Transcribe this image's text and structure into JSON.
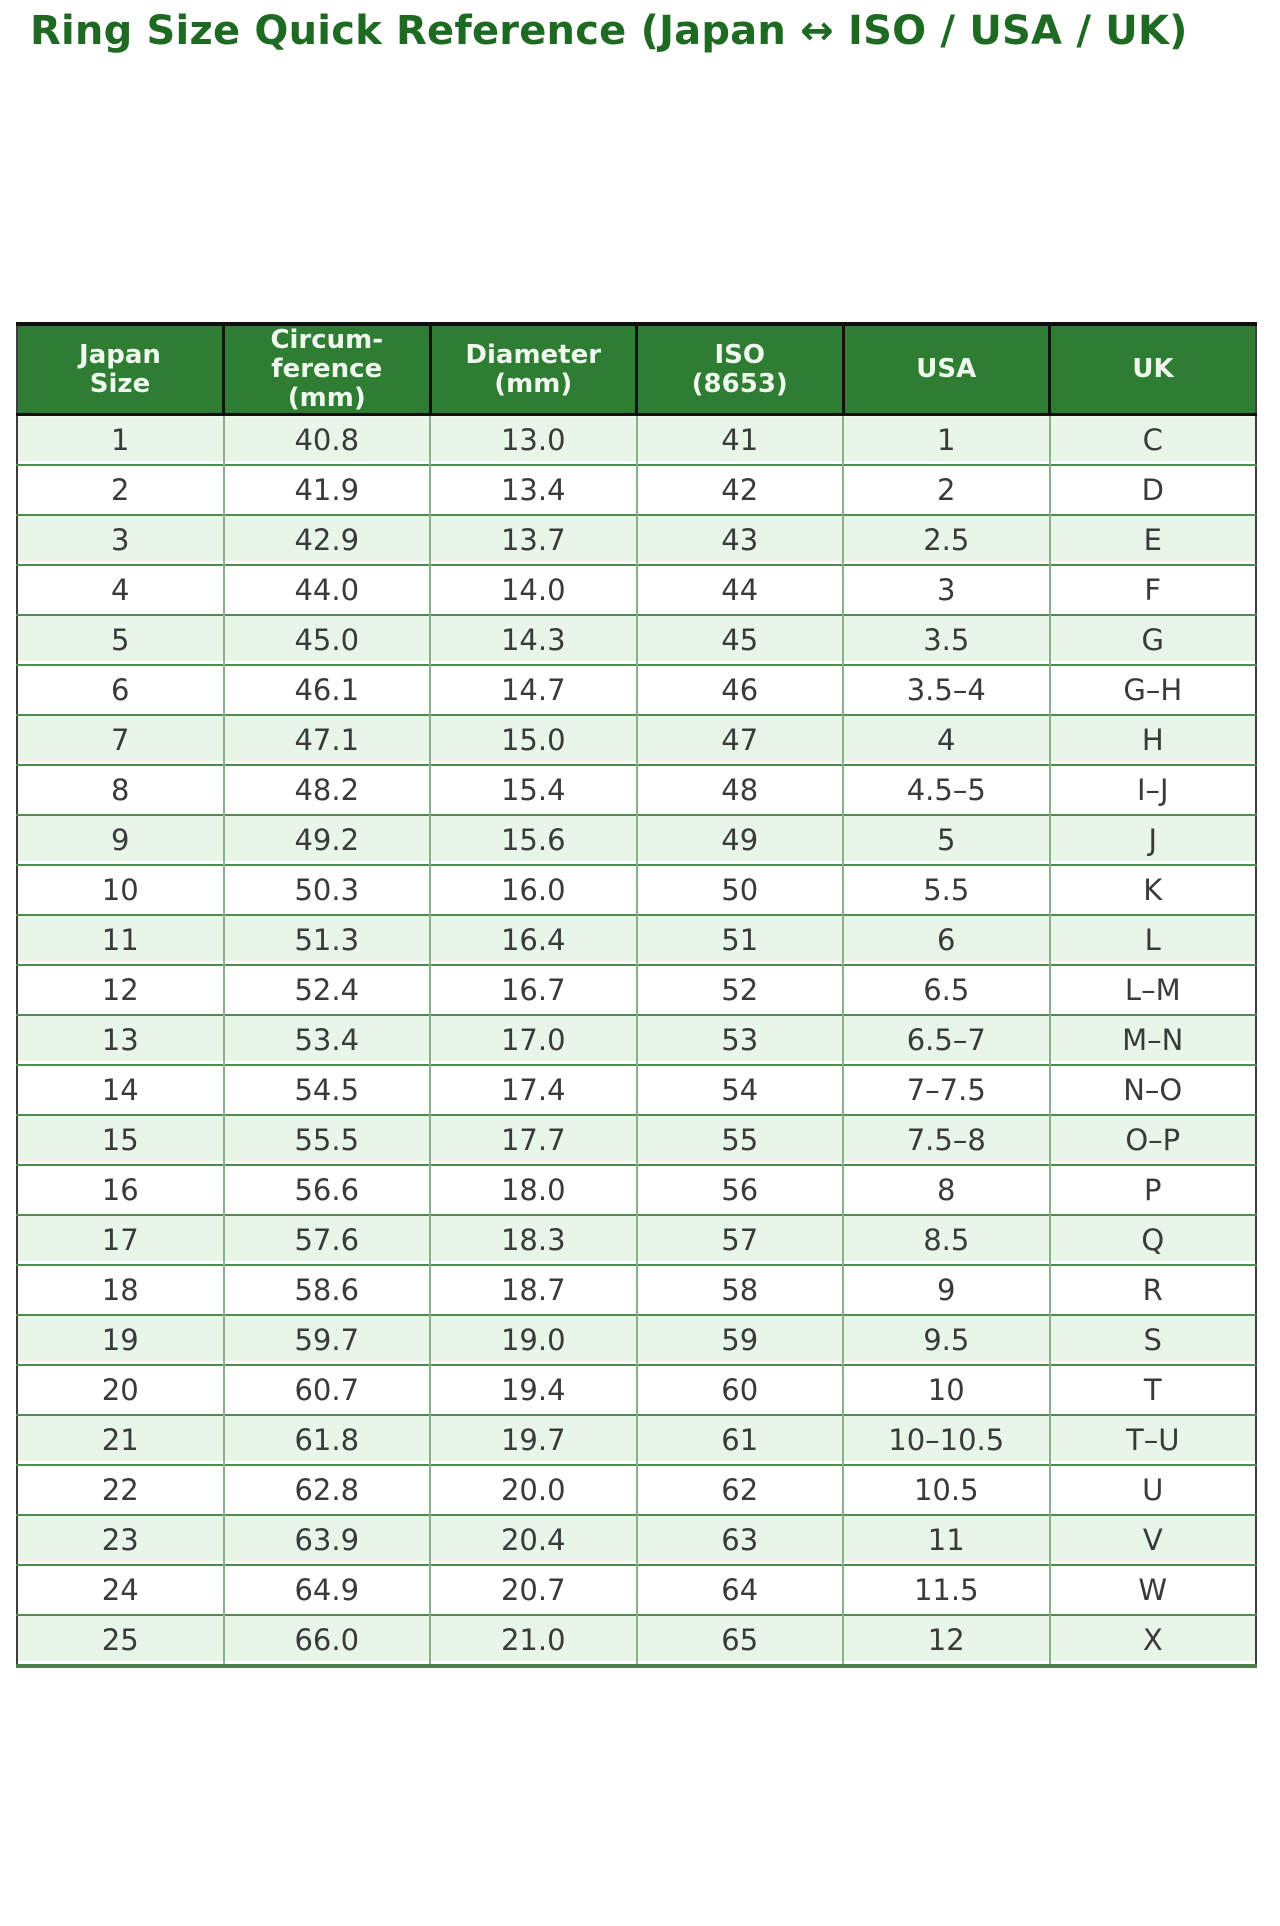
{
  "page": {
    "title": "Ring Size Quick Reference (Japan ↔ ISO / USA / UK)"
  },
  "colors": {
    "title_green": "#1f6a23",
    "header_bg": "#2e7d32",
    "header_text": "#eff7ef",
    "row_alt_green": "#e8f5e9",
    "row_white": "#ffffff",
    "row_divider_green": "#4e8d4e",
    "cell_divider_green": "#8ab28a",
    "outer_border_black": "#101010",
    "bottom_border_green": "#4c7f4c",
    "data_text": "#3a3a3a"
  },
  "table": {
    "headers": [
      "Japan\nSize",
      "Circum-\nference\n(mm)",
      "Diameter\n(mm)",
      "ISO\n(8653)",
      "USA",
      "UK"
    ],
    "header_keys": [
      "japan-size",
      "circumference-mm",
      "diameter-mm",
      "iso-8653",
      "usa",
      "uk"
    ],
    "rows": [
      [
        "1",
        "40.8",
        "13.0",
        "41",
        "1",
        "C"
      ],
      [
        "2",
        "41.9",
        "13.4",
        "42",
        "2",
        "D"
      ],
      [
        "3",
        "42.9",
        "13.7",
        "43",
        "2.5",
        "E"
      ],
      [
        "4",
        "44.0",
        "14.0",
        "44",
        "3",
        "F"
      ],
      [
        "5",
        "45.0",
        "14.3",
        "45",
        "3.5",
        "G"
      ],
      [
        "6",
        "46.1",
        "14.7",
        "46",
        "3.5–4",
        "G–H"
      ],
      [
        "7",
        "47.1",
        "15.0",
        "47",
        "4",
        "H"
      ],
      [
        "8",
        "48.2",
        "15.4",
        "48",
        "4.5–5",
        "I–J"
      ],
      [
        "9",
        "49.2",
        "15.6",
        "49",
        "5",
        "J"
      ],
      [
        "10",
        "50.3",
        "16.0",
        "50",
        "5.5",
        "K"
      ],
      [
        "11",
        "51.3",
        "16.4",
        "51",
        "6",
        "L"
      ],
      [
        "12",
        "52.4",
        "16.7",
        "52",
        "6.5",
        "L–M"
      ],
      [
        "13",
        "53.4",
        "17.0",
        "53",
        "6.5–7",
        "M–N"
      ],
      [
        "14",
        "54.5",
        "17.4",
        "54",
        "7–7.5",
        "N–O"
      ],
      [
        "15",
        "55.5",
        "17.7",
        "55",
        "7.5–8",
        "O–P"
      ],
      [
        "16",
        "56.6",
        "18.0",
        "56",
        "8",
        "P"
      ],
      [
        "17",
        "57.6",
        "18.3",
        "57",
        "8.5",
        "Q"
      ],
      [
        "18",
        "58.6",
        "18.7",
        "58",
        "9",
        "R"
      ],
      [
        "19",
        "59.7",
        "19.0",
        "59",
        "9.5",
        "S"
      ],
      [
        "20",
        "60.7",
        "19.4",
        "60",
        "10",
        "T"
      ],
      [
        "21",
        "61.8",
        "19.7",
        "61",
        "10–10.5",
        "T–U"
      ],
      [
        "22",
        "62.8",
        "20.0",
        "62",
        "10.5",
        "U"
      ],
      [
        "23",
        "63.9",
        "20.4",
        "63",
        "11",
        "V"
      ],
      [
        "24",
        "64.9",
        "20.7",
        "64",
        "11.5",
        "W"
      ],
      [
        "25",
        "66.0",
        "21.0",
        "65",
        "12",
        "X"
      ]
    ]
  }
}
